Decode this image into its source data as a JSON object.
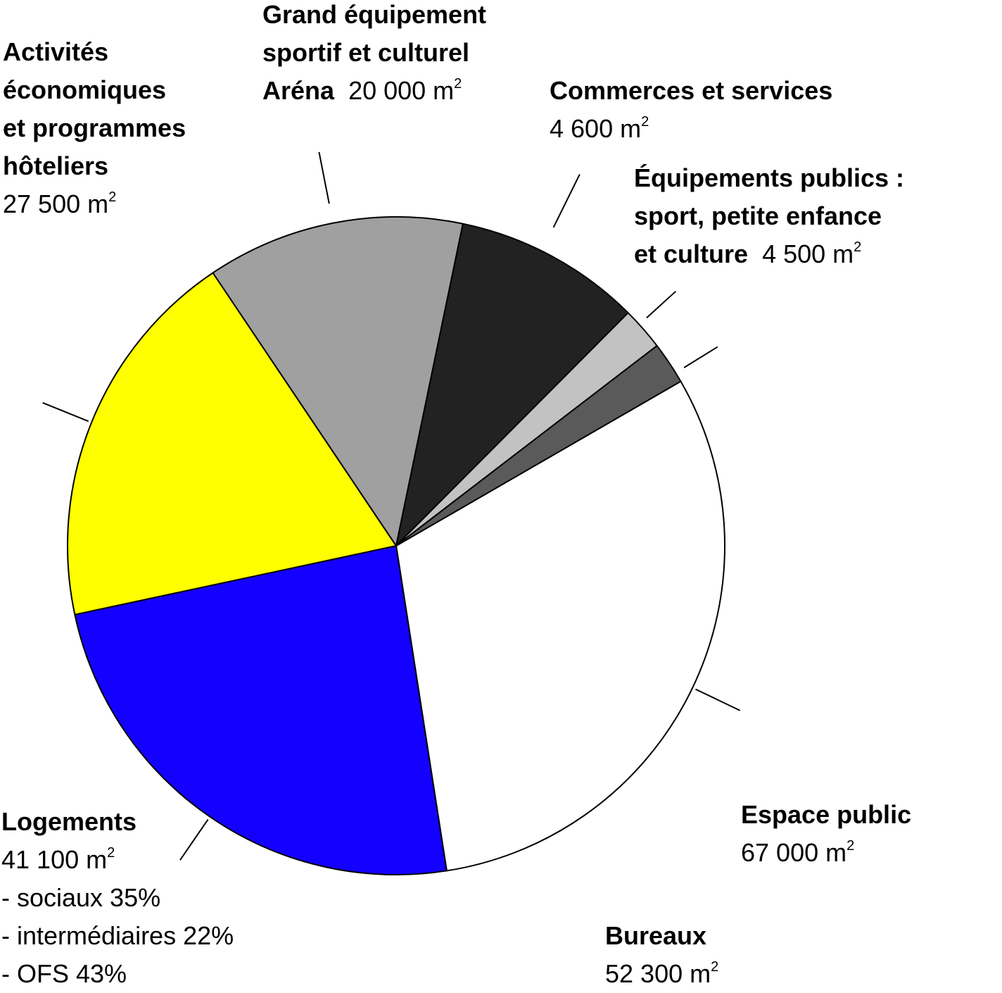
{
  "chart_data": {
    "type": "pie",
    "title": "",
    "unit": "m²",
    "slices": [
      {
        "label": "Espace public",
        "value": 67000,
        "display_value": "67 000",
        "color": "#ffffff"
      },
      {
        "label": "Bureaux",
        "value": 52300,
        "display_value": "52 300",
        "color": "#1400ff"
      },
      {
        "label": "Logements",
        "value": 41100,
        "display_value": "41 100",
        "color": "#ffff00",
        "breakdown": [
          "- sociaux 35%",
          "- intermédiaires 22%",
          "- OFS 43%"
        ]
      },
      {
        "label": "Activités économiques et programmes hôteliers",
        "value": 27500,
        "display_value": "27 500",
        "color": "#a0a0a0",
        "label_lines": [
          "Activités",
          "économiques",
          "et programmes",
          "hôteliers"
        ]
      },
      {
        "label": "Grand équipement sportif et culturel Aréna",
        "value": 20000,
        "display_value": "20 000",
        "color": "#222222",
        "label_lines": [
          "Grand équipement",
          "sportif et culturel",
          "Aréna"
        ]
      },
      {
        "label": "Commerces et services",
        "value": 4600,
        "display_value": "4 600",
        "color": "#c2c2c2"
      },
      {
        "label": "Équipements publics : sport, petite enfance et culture",
        "value": 4500,
        "display_value": "4 500",
        "color": "#5a5a5a",
        "label_lines": [
          "Équipements publics :",
          "sport, petite enfance",
          "et culture"
        ]
      }
    ]
  }
}
